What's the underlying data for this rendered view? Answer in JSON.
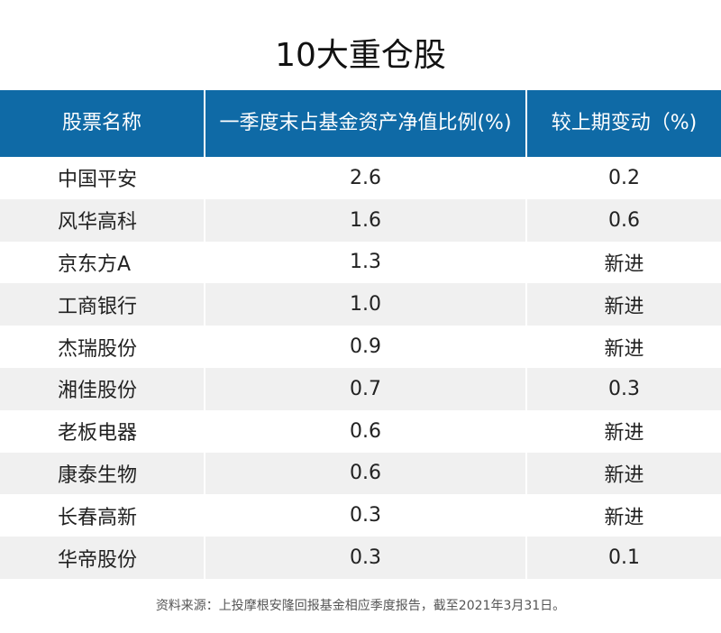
{
  "title": "10大重仓股",
  "footer": "资料来源：上投摩根安隆回报基金相应季度报告，截至2021年3月31日。",
  "colors": {
    "header_bg": "#0f6aa6",
    "stripe_bg": "#f0f0f0"
  },
  "chart_data": {
    "type": "table",
    "title": "10大重仓股",
    "columns": [
      "股票名称",
      "一季度末占基金资产净值比例(%)",
      "较上期变动（%)"
    ],
    "rows": [
      [
        "中国平安",
        "2.6",
        "0.2"
      ],
      [
        "风华高科",
        "1.6",
        "0.6"
      ],
      [
        "京东方A",
        "1.3",
        "新进"
      ],
      [
        "工商银行",
        "1.0",
        "新进"
      ],
      [
        "杰瑞股份",
        "0.9",
        "新进"
      ],
      [
        "湘佳股份",
        "0.7",
        "0.3"
      ],
      [
        "老板电器",
        "0.6",
        "新进"
      ],
      [
        "康泰生物",
        "0.6",
        "新进"
      ],
      [
        "长春高新",
        "0.3",
        "新进"
      ],
      [
        "华帝股份",
        "0.3",
        "0.1"
      ]
    ]
  }
}
